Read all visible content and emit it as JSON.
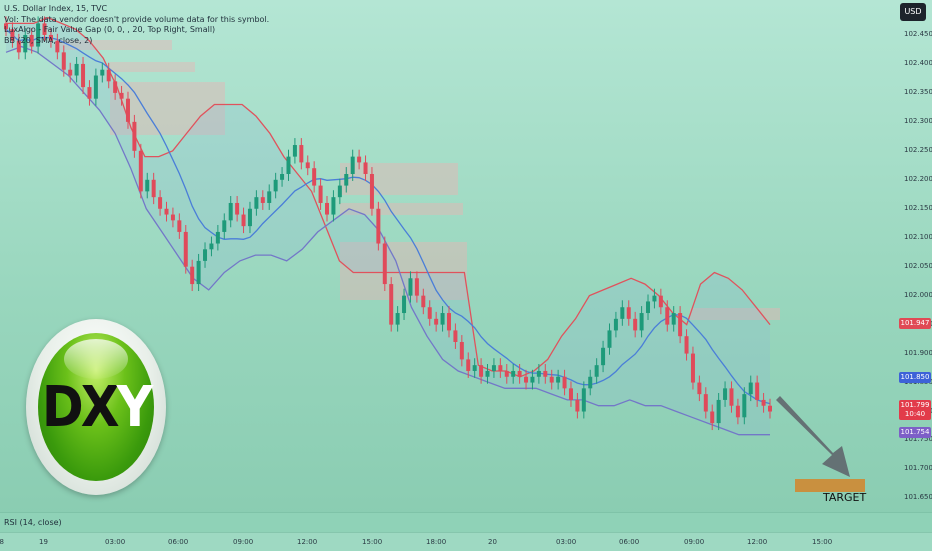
{
  "header": {
    "symbol_line": "U.S. Dollar Index, 15, TVC",
    "vol_line": "Vol: The data vendor doesn't provide volume data for this symbol.",
    "luxalgo_line": "LuxAlgo - Fair Value Gap (0, 0, , 20, Top Right, Small)",
    "bb_line": "BB (20, SMA, close, 2)",
    "currency": "USD"
  },
  "rsi": {
    "label": "RSI (14, close)"
  },
  "target": {
    "label": "TARGET"
  },
  "logo": {
    "left": "DX",
    "right": "Y"
  },
  "price_tags": [
    {
      "value": "101.947",
      "color": "#e04a55"
    },
    {
      "value": "101.850",
      "color": "#3d62d8"
    },
    {
      "value": "101.799",
      "sub": "10:40",
      "color": "#e23b4a"
    },
    {
      "value": "101.754",
      "color": "#7d5fc7"
    }
  ],
  "chart_data": {
    "type": "candlestick",
    "y_axis_ticks": [
      "102.450",
      "102.400",
      "102.350",
      "102.300",
      "102.250",
      "102.200",
      "102.150",
      "102.100",
      "102.050",
      "102.000",
      "101.950",
      "101.900",
      "101.850",
      "101.800",
      "101.750",
      "101.700",
      "101.650"
    ],
    "y_range": [
      101.63,
      102.5
    ],
    "x_axis_ticks": [
      "18",
      "19",
      "03:00",
      "06:00",
      "09:00",
      "12:00",
      "15:00",
      "18:00",
      "20",
      "03:00",
      "06:00",
      "09:00",
      "12:00",
      "15:00"
    ],
    "indicators": [
      "Bollinger Bands (20, SMA, close, 2)",
      "LuxAlgo Fair Value Gap"
    ],
    "series": [
      {
        "name": "close",
        "values": [
          102.46,
          102.44,
          102.42,
          102.45,
          102.43,
          102.47,
          102.45,
          102.44,
          102.42,
          102.39,
          102.38,
          102.4,
          102.36,
          102.34,
          102.38,
          102.39,
          102.37,
          102.35,
          102.34,
          102.3,
          102.25,
          102.18,
          102.2,
          102.17,
          102.15,
          102.14,
          102.13,
          102.11,
          102.05,
          102.02,
          102.06,
          102.08,
          102.09,
          102.11,
          102.13,
          102.16,
          102.14,
          102.12,
          102.15,
          102.17,
          102.16,
          102.18,
          102.2,
          102.21,
          102.24,
          102.26,
          102.23,
          102.22,
          102.19,
          102.16,
          102.14,
          102.17,
          102.19,
          102.21,
          102.24,
          102.23,
          102.21,
          102.15,
          102.09,
          102.02,
          101.95,
          101.97,
          102.0,
          102.03,
          102.0,
          101.98,
          101.96,
          101.95,
          101.97,
          101.94,
          101.92,
          101.89,
          101.87,
          101.88,
          101.86,
          101.87,
          101.88,
          101.87,
          101.86,
          101.87,
          101.86,
          101.85,
          101.86,
          101.87,
          101.86,
          101.85,
          101.86,
          101.84,
          101.82,
          101.8,
          101.84,
          101.86,
          101.88,
          101.91,
          101.94,
          101.96,
          101.98,
          101.96,
          101.94,
          101.97,
          101.99,
          102.0,
          101.98,
          101.95,
          101.97,
          101.93,
          101.9,
          101.85,
          101.83,
          101.8,
          101.78,
          101.82,
          101.84,
          101.81,
          101.79,
          101.83,
          101.85,
          101.82,
          101.81,
          101.8
        ]
      },
      {
        "name": "upper_band",
        "values": [
          102.47,
          102.47,
          102.47,
          102.48,
          102.47,
          102.46,
          102.44,
          102.41,
          102.36,
          102.29,
          102.24,
          102.24,
          102.25,
          102.28,
          102.31,
          102.33,
          102.33,
          102.33,
          102.31,
          102.28,
          102.24,
          102.21,
          102.18,
          102.12,
          102.06,
          102.04,
          102.04,
          102.04,
          102.04,
          102.04,
          102.04,
          102.04,
          102.04,
          102.04,
          101.88,
          101.87,
          101.87,
          101.86,
          101.87,
          101.89,
          101.93,
          101.96,
          102.0,
          102.01,
          102.02,
          102.03,
          102.02,
          102.0,
          101.97,
          101.95,
          102.02,
          102.04,
          102.03,
          102.01,
          101.98,
          101.95
        ]
      },
      {
        "name": "lower_band",
        "values": [
          102.42,
          102.43,
          102.42,
          102.4,
          102.38,
          102.35,
          102.32,
          102.28,
          102.22,
          102.15,
          102.11,
          102.07,
          102.03,
          102.01,
          102.04,
          102.06,
          102.07,
          102.07,
          102.06,
          102.08,
          102.11,
          102.13,
          102.15,
          102.14,
          102.11,
          102.06,
          101.98,
          101.93,
          101.89,
          101.87,
          101.86,
          101.85,
          101.84,
          101.84,
          101.84,
          101.83,
          101.82,
          101.82,
          101.81,
          101.81,
          101.82,
          101.81,
          101.81,
          101.8,
          101.79,
          101.78,
          101.77,
          101.76,
          101.76,
          101.76
        ]
      }
    ]
  }
}
